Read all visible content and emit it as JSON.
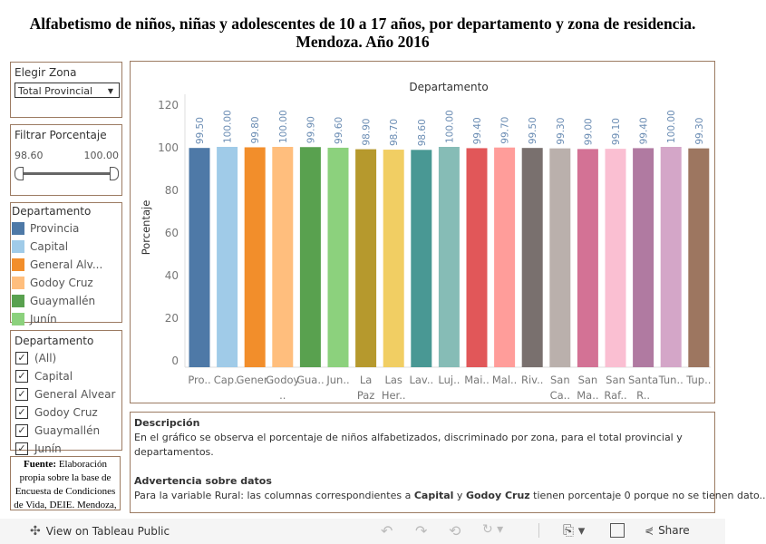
{
  "title": "Alfabetismo de niños, niñas y adolescentes de 10 a 17 años, por departamento y zona de residencia. Mendoza. Año 2016",
  "zona": {
    "label": "Elegir Zona",
    "value": "Total Provincial"
  },
  "filtro": {
    "label": "Filtrar Porcentaje",
    "min": "98.60",
    "max": "100.00"
  },
  "legend": {
    "title": "Departamento",
    "items": [
      {
        "label": "Provincia",
        "color": "#4e79a7"
      },
      {
        "label": "Capital",
        "color": "#a0cbe8"
      },
      {
        "label": "General Alv...",
        "color": "#f28e2b"
      },
      {
        "label": "Godoy Cruz",
        "color": "#ffbe7d"
      },
      {
        "label": "Guaymallén",
        "color": "#59a14f"
      },
      {
        "label": "Junín",
        "color": "#8cd17d"
      }
    ]
  },
  "checklist": {
    "title": "Departamento",
    "items": [
      "(All)",
      "Capital",
      "General Alvear",
      "Godoy Cruz",
      "Guaymallén",
      "Junín"
    ]
  },
  "fuente": {
    "bold": "Fuente:",
    "text": " Elaboración propia sobre la base de Encuesta de Condiciones de Vida, DEIE. Mendoza,"
  },
  "description": {
    "h1": "Descripción",
    "p1": "En el gráfico se observa el porcentaje de niños alfabetizados, discriminado por zona, para el total provincial y departamentos.",
    "h2": "Advertencia sobre datos",
    "p2a": "Para la variable Rural: las columnas correspondientes a ",
    "b1": "Capital",
    "p2b": " y ",
    "b2": "Godoy Cruz",
    "p2c": " tienen porcentaje 0 porque no se tienen dato.."
  },
  "toolbar": {
    "view": "View on Tableau Public",
    "share": "Share"
  },
  "chart_data": {
    "type": "bar",
    "title": "Departamento",
    "ylabel": "Porcentaje",
    "ylim": [
      0,
      120
    ],
    "yticks": [
      0,
      20,
      40,
      60,
      80,
      100,
      120
    ],
    "grid": false,
    "categories": [
      "Pro..",
      "Cap..",
      "Gener..",
      "Godoy ..",
      "Gua..",
      "Jun..",
      "La Paz",
      "Las Her..",
      "Lav..",
      "Luj..",
      "Mai..",
      "Mal..",
      "Riv..",
      "San Ca..",
      "San Ma..",
      "San Raf..",
      "Santa R..",
      "Tun..",
      "Tup.."
    ],
    "values": [
      99.5,
      100,
      99.8,
      100,
      99.9,
      99.6,
      98.9,
      98.7,
      98.6,
      100,
      99.4,
      99.7,
      99.5,
      99.3,
      99,
      99.1,
      99.4,
      100,
      99.3
    ],
    "labels": [
      "99.50",
      "100.00",
      "99.80",
      "100.00",
      "99.90",
      "99.60",
      "98.90",
      "98.70",
      "98.60",
      "100.00",
      "99.40",
      "99.70",
      "99.50",
      "99.30",
      "99.00",
      "99.10",
      "99.40",
      "100.00",
      "99.30"
    ],
    "colors": [
      "#4e79a7",
      "#a0cbe8",
      "#f28e2b",
      "#ffbe7d",
      "#59a14f",
      "#8cd17d",
      "#b6992d",
      "#f1ce63",
      "#499894",
      "#86bcb6",
      "#e15759",
      "#ff9d9a",
      "#79706e",
      "#bab0ac",
      "#d37295",
      "#fabfd2",
      "#b07aa1",
      "#d4a6c8",
      "#9d7660"
    ]
  }
}
